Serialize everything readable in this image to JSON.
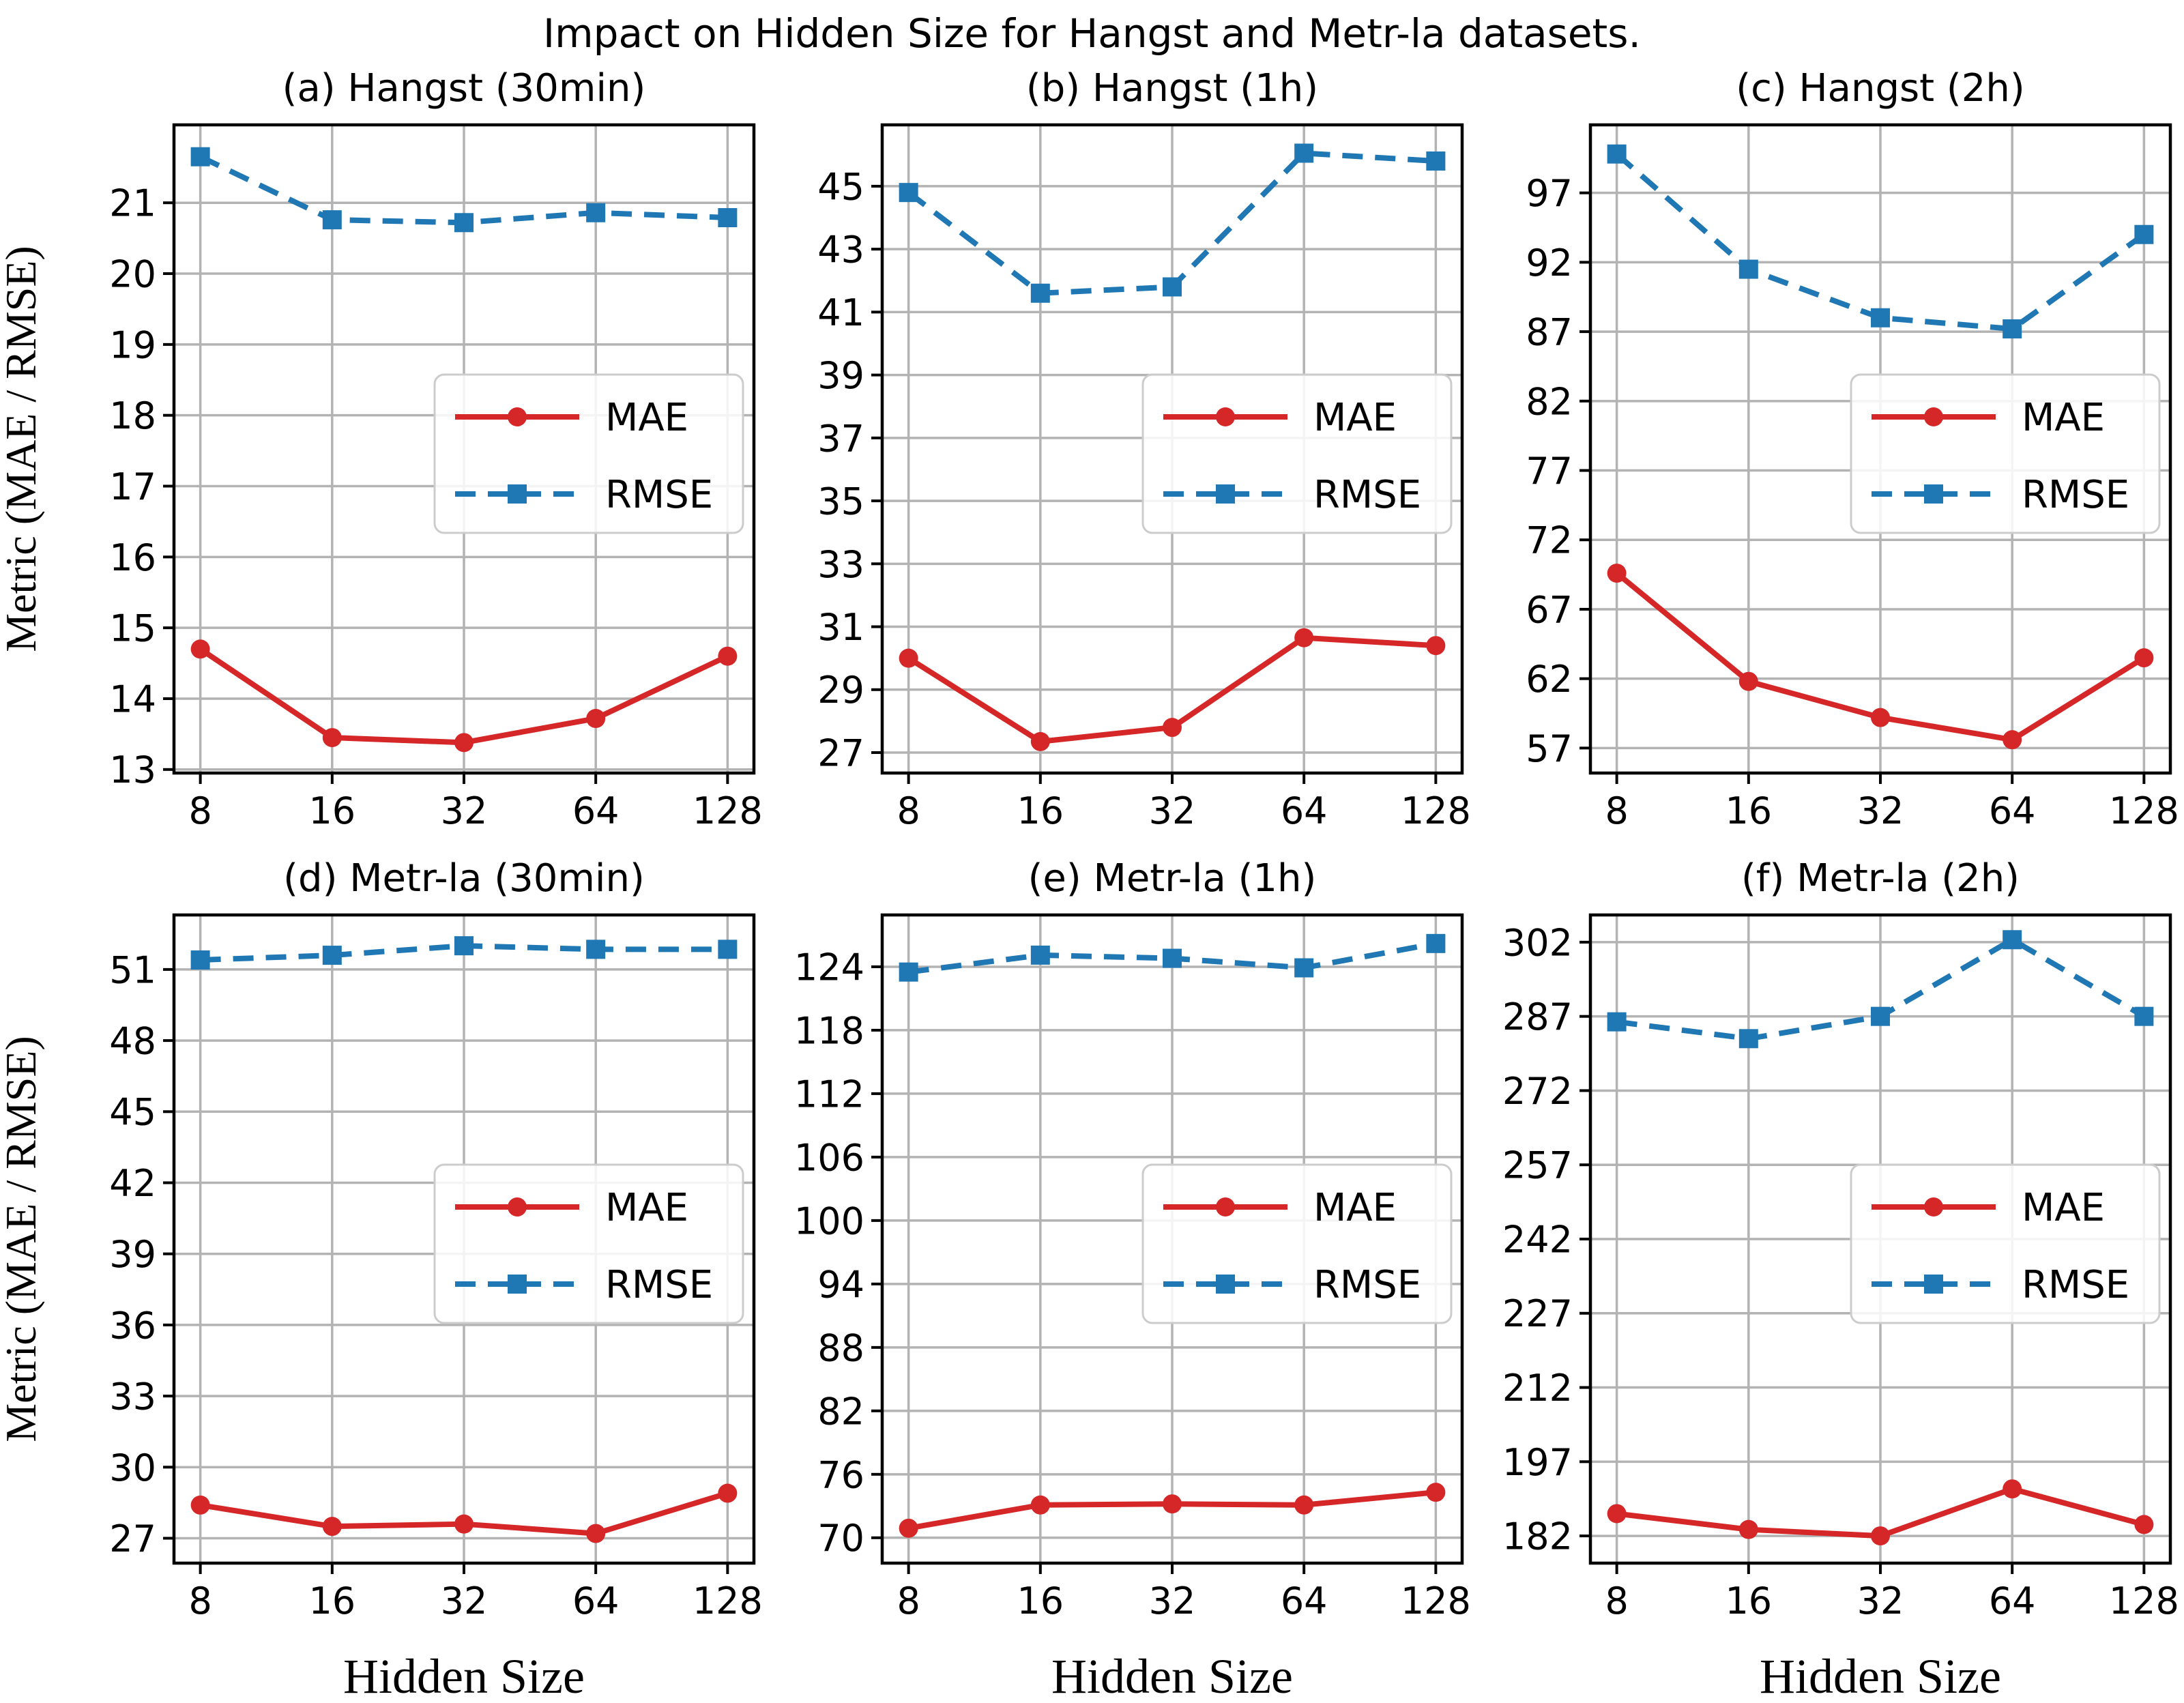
{
  "title": "Impact on Hidden Size for Hangst and Metr-la datasets.",
  "axis_labels": {
    "x": "Hidden Size",
    "y": "Metric (MAE / RMSE)"
  },
  "legend": {
    "entries": [
      "MAE",
      "RMSE"
    ],
    "position": "center right"
  },
  "style": {
    "mae_color": "#d62728",
    "rmse_color": "#1f77b4",
    "grid_color": "#b3b3b3",
    "spine_color": "#000000",
    "legend_border": "#cccccc",
    "legend_bg": "rgba(255,255,255,0.85)"
  },
  "chart_data": [
    {
      "id": "a",
      "type": "line",
      "title": "(a) Hangst (30min)",
      "categories": [
        "8",
        "16",
        "32",
        "64",
        "128"
      ],
      "xlabel": "",
      "ylabel": "Metric (MAE / RMSE)",
      "ylim": [
        12.95,
        22.1
      ],
      "yticks": [
        13,
        14,
        15,
        16,
        17,
        18,
        19,
        20,
        21
      ],
      "grid": true,
      "legend": true,
      "series": [
        {
          "name": "MAE",
          "marker": "circle",
          "dashed": false,
          "values": [
            14.7,
            13.45,
            13.38,
            13.72,
            14.6
          ]
        },
        {
          "name": "RMSE",
          "marker": "square",
          "dashed": true,
          "values": [
            21.65,
            20.76,
            20.72,
            20.86,
            20.79
          ]
        }
      ]
    },
    {
      "id": "b",
      "type": "line",
      "title": "(b) Hangst (1h)",
      "categories": [
        "8",
        "16",
        "32",
        "64",
        "128"
      ],
      "xlabel": "",
      "ylabel": "",
      "ylim": [
        26.35,
        46.95
      ],
      "yticks": [
        27,
        29,
        31,
        33,
        35,
        37,
        39,
        41,
        43,
        45
      ],
      "grid": true,
      "legend": true,
      "series": [
        {
          "name": "MAE",
          "marker": "circle",
          "dashed": false,
          "values": [
            30.0,
            27.35,
            27.8,
            30.65,
            30.4
          ]
        },
        {
          "name": "RMSE",
          "marker": "square",
          "dashed": true,
          "values": [
            44.8,
            41.6,
            41.8,
            46.05,
            45.8
          ]
        }
      ]
    },
    {
      "id": "c",
      "type": "line",
      "title": "(c) Hangst (2h)",
      "categories": [
        "8",
        "16",
        "32",
        "64",
        "128"
      ],
      "xlabel": "",
      "ylabel": "",
      "ylim": [
        55.2,
        101.9
      ],
      "yticks": [
        57,
        62,
        67,
        72,
        77,
        82,
        87,
        92,
        97
      ],
      "grid": true,
      "legend": true,
      "series": [
        {
          "name": "MAE",
          "marker": "circle",
          "dashed": false,
          "values": [
            69.6,
            61.8,
            59.2,
            57.6,
            63.5
          ]
        },
        {
          "name": "RMSE",
          "marker": "square",
          "dashed": true,
          "values": [
            99.8,
            91.5,
            88.0,
            87.2,
            94.0
          ]
        }
      ]
    },
    {
      "id": "d",
      "type": "line",
      "title": "(d) Metr-la (30min)",
      "categories": [
        "8",
        "16",
        "32",
        "64",
        "128"
      ],
      "xlabel": "Hidden Size",
      "ylabel": "Metric (MAE / RMSE)",
      "ylim": [
        25.95,
        53.3
      ],
      "yticks": [
        27,
        30,
        33,
        36,
        39,
        42,
        45,
        48,
        51
      ],
      "grid": true,
      "legend": true,
      "series": [
        {
          "name": "MAE",
          "marker": "circle",
          "dashed": false,
          "values": [
            28.4,
            27.5,
            27.6,
            27.2,
            28.9
          ]
        },
        {
          "name": "RMSE",
          "marker": "square",
          "dashed": true,
          "values": [
            51.4,
            51.6,
            52.0,
            51.85,
            51.85
          ]
        }
      ]
    },
    {
      "id": "e",
      "type": "line",
      "title": "(e) Metr-la (1h)",
      "categories": [
        "8",
        "16",
        "32",
        "64",
        "128"
      ],
      "xlabel": "Hidden Size",
      "ylabel": "",
      "ylim": [
        67.6,
        128.9
      ],
      "yticks": [
        70,
        76,
        82,
        88,
        94,
        100,
        106,
        112,
        118,
        124
      ],
      "grid": true,
      "legend": true,
      "series": [
        {
          "name": "MAE",
          "marker": "circle",
          "dashed": false,
          "values": [
            70.9,
            73.1,
            73.2,
            73.1,
            74.3
          ]
        },
        {
          "name": "RMSE",
          "marker": "square",
          "dashed": true,
          "values": [
            123.5,
            125.1,
            124.8,
            123.9,
            126.2
          ]
        }
      ]
    },
    {
      "id": "f",
      "type": "line",
      "title": "(f) Metr-la (2h)",
      "categories": [
        "8",
        "16",
        "32",
        "64",
        "128"
      ],
      "xlabel": "Hidden Size",
      "ylabel": "",
      "ylim": [
        176.5,
        307.5
      ],
      "yticks": [
        182,
        197,
        212,
        227,
        242,
        257,
        272,
        287,
        302
      ],
      "grid": true,
      "legend": true,
      "series": [
        {
          "name": "MAE",
          "marker": "circle",
          "dashed": false,
          "values": [
            186.5,
            183.3,
            182.0,
            191.5,
            184.3
          ]
        },
        {
          "name": "RMSE",
          "marker": "square",
          "dashed": true,
          "values": [
            285.9,
            282.5,
            287.0,
            302.5,
            287.0
          ]
        }
      ]
    }
  ]
}
